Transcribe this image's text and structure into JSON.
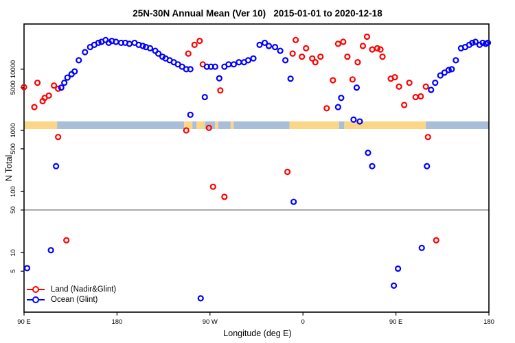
{
  "title": "25N-30N Annual Mean (Ver 10)   2015-01-01 to 2020-12-18",
  "legend": {
    "entries": [
      {
        "label": "Land (Nadir&Glint)",
        "color": "#FF0000"
      },
      {
        "label": "Ocean (Glint)",
        "color": "#0000FF"
      }
    ]
  },
  "chart_data": {
    "type": "scatter",
    "title": "25N-30N Annual Mean (Ver 10)   2015-01-01 to 2020-12-18",
    "xlabel": "Longitude (deg E)",
    "ylabel": "N Total",
    "grid": false,
    "legend_position": "bottom-left",
    "x_axis": {
      "note": "longitude along plot path, wraps past 180 and 360",
      "range": [
        90,
        540
      ],
      "ticks": [
        {
          "pos": 90,
          "label": "90 E"
        },
        {
          "pos": 180,
          "label": "180"
        },
        {
          "pos": 270,
          "label": "90 W"
        },
        {
          "pos": 360,
          "label": "0"
        },
        {
          "pos": 450,
          "label": "90 E"
        },
        {
          "pos": 540,
          "label": "180"
        }
      ]
    },
    "y_axis": {
      "scale": "log10",
      "range": [
        1.07,
        54800
      ],
      "ticks": [
        {
          "value": 10000,
          "label": "10000"
        },
        {
          "value": 5000,
          "label": "5000"
        },
        {
          "value": 1000,
          "label": "1000"
        },
        {
          "value": 500,
          "label": "500"
        },
        {
          "value": 100,
          "label": "100"
        },
        {
          "value": 50,
          "label": "50"
        },
        {
          "value": 10,
          "label": "10"
        },
        {
          "value": 5,
          "label": "5"
        }
      ]
    },
    "reference_line": {
      "value": 50,
      "color": "#808080"
    },
    "land_ocean_strip": {
      "land_color": "#FAD687",
      "ocean_color": "#A8BED9",
      "segments": [
        {
          "from": 90,
          "to": 122,
          "type": "land"
        },
        {
          "from": 122,
          "to": 245,
          "type": "ocean"
        },
        {
          "from": 245,
          "to": 253,
          "type": "land"
        },
        {
          "from": 253,
          "to": 257,
          "type": "ocean"
        },
        {
          "from": 257,
          "to": 265,
          "type": "land"
        },
        {
          "from": 265,
          "to": 275,
          "type": "ocean"
        },
        {
          "from": 275,
          "to": 278,
          "type": "land"
        },
        {
          "from": 278,
          "to": 290,
          "type": "ocean"
        },
        {
          "from": 290,
          "to": 293,
          "type": "land"
        },
        {
          "from": 293,
          "to": 347,
          "type": "ocean"
        },
        {
          "from": 347,
          "to": 395,
          "type": "land"
        },
        {
          "from": 395,
          "to": 400,
          "type": "ocean"
        },
        {
          "from": 400,
          "to": 479,
          "type": "land"
        },
        {
          "from": 479,
          "to": 540,
          "type": "ocean"
        }
      ]
    },
    "series": [
      {
        "name": "Land (Nadir&Glint)",
        "color": "#FF0000",
        "points": [
          [
            90,
            5100
          ],
          [
            100,
            2400
          ],
          [
            103,
            6000
          ],
          [
            108,
            3000
          ],
          [
            110,
            3400
          ],
          [
            114,
            3700
          ],
          [
            119,
            5400
          ],
          [
            123,
            4800
          ],
          [
            123,
            780
          ],
          [
            131,
            16
          ],
          [
            247,
            1000
          ],
          [
            249,
            18000
          ],
          [
            255,
            25000
          ],
          [
            260,
            29000
          ],
          [
            263,
            12000
          ],
          [
            269,
            1100
          ],
          [
            273,
            120
          ],
          [
            280,
            4500
          ],
          [
            284,
            82
          ],
          [
            345,
            210
          ],
          [
            350,
            18000
          ],
          [
            353,
            30000
          ],
          [
            359,
            16000
          ],
          [
            363,
            22000
          ],
          [
            369,
            15000
          ],
          [
            372,
            13000
          ],
          [
            377,
            16000
          ],
          [
            383,
            2300
          ],
          [
            389,
            6600
          ],
          [
            394,
            26000
          ],
          [
            399,
            28000
          ],
          [
            403,
            16000
          ],
          [
            408,
            6800
          ],
          [
            413,
            13000
          ],
          [
            418,
            24000
          ],
          [
            422,
            34000
          ],
          [
            427,
            21000
          ],
          [
            432,
            22000
          ],
          [
            435,
            21000
          ],
          [
            437,
            16000
          ],
          [
            445,
            7000
          ],
          [
            449,
            7400
          ],
          [
            453,
            5200
          ],
          [
            458,
            2600
          ],
          [
            463,
            6000
          ],
          [
            469,
            3500
          ],
          [
            474,
            3600
          ],
          [
            479,
            5200
          ],
          [
            481,
            780
          ],
          [
            489,
            16
          ]
        ]
      },
      {
        "name": "Ocean (Glint)",
        "color": "#0000FF",
        "points": [
          [
            93,
            5.6
          ],
          [
            116,
            11
          ],
          [
            121,
            260
          ],
          [
            126,
            5000
          ],
          [
            129,
            6000
          ],
          [
            132,
            7300
          ],
          [
            136,
            8300
          ],
          [
            139,
            9200
          ],
          [
            143,
            14000
          ],
          [
            149,
            19000
          ],
          [
            154,
            23000
          ],
          [
            158,
            25000
          ],
          [
            162,
            27000
          ],
          [
            165,
            28000
          ],
          [
            169,
            30000
          ],
          [
            172,
            27000
          ],
          [
            175,
            29000
          ],
          [
            179,
            28000
          ],
          [
            184,
            27000
          ],
          [
            188,
            27000
          ],
          [
            192,
            26000
          ],
          [
            197,
            27000
          ],
          [
            201,
            25000
          ],
          [
            205,
            24000
          ],
          [
            208,
            23000
          ],
          [
            212,
            22000
          ],
          [
            217,
            20000
          ],
          [
            220,
            18000
          ],
          [
            224,
            16000
          ],
          [
            227,
            15000
          ],
          [
            231,
            14000
          ],
          [
            235,
            13000
          ],
          [
            239,
            12000
          ],
          [
            243,
            11000
          ],
          [
            247,
            10000
          ],
          [
            251,
            10000
          ],
          [
            251,
            1800
          ],
          [
            261,
            1.8
          ],
          [
            265,
            3500
          ],
          [
            267,
            11000
          ],
          [
            271,
            11000
          ],
          [
            275,
            11000
          ],
          [
            279,
            7100
          ],
          [
            284,
            11000
          ],
          [
            288,
            12000
          ],
          [
            293,
            12000
          ],
          [
            298,
            13000
          ],
          [
            303,
            13000
          ],
          [
            307,
            14000
          ],
          [
            312,
            15000
          ],
          [
            318,
            25000
          ],
          [
            323,
            27000
          ],
          [
            327,
            24000
          ],
          [
            333,
            23000
          ],
          [
            338,
            20000
          ],
          [
            343,
            14000
          ],
          [
            348,
            7000
          ],
          [
            351,
            68
          ],
          [
            394,
            2400
          ],
          [
            397,
            3400
          ],
          [
            409,
            1500
          ],
          [
            412,
            5000
          ],
          [
            415,
            1400
          ],
          [
            423,
            430
          ],
          [
            427,
            260
          ],
          [
            448,
            2.9
          ],
          [
            452,
            5.5
          ],
          [
            475,
            12
          ],
          [
            480,
            260
          ],
          [
            484,
            4600
          ],
          [
            488,
            6000
          ],
          [
            493,
            7900
          ],
          [
            497,
            8800
          ],
          [
            501,
            9700
          ],
          [
            504,
            10000
          ],
          [
            508,
            14000
          ],
          [
            513,
            22000
          ],
          [
            517,
            23000
          ],
          [
            521,
            25000
          ],
          [
            524,
            27000
          ],
          [
            527,
            28000
          ],
          [
            531,
            25000
          ],
          [
            534,
            27000
          ],
          [
            537,
            26000
          ],
          [
            539,
            27000
          ]
        ]
      }
    ]
  }
}
